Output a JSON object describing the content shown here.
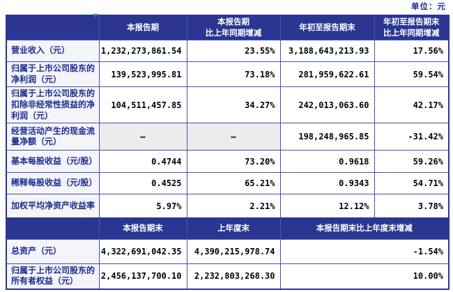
{
  "unit_label": "单位：元",
  "colors": {
    "header_bg": "#2A3692",
    "header_text": "#FFFFFF",
    "border": "#4052A8",
    "outer_border": "#2A3692",
    "label_bg": "#F4F4F9",
    "label_text": "#1B2C8F",
    "value_text": "#000000",
    "dash_cell_bg": "#ECECEC",
    "marker_green": "#2FA043"
  },
  "table1": {
    "headers": [
      "",
      "本报告期",
      "本报告期\n比上年同期增减",
      "年初至报告期末",
      "年初至报告期末\n比上年同期增减"
    ],
    "rows": [
      {
        "label": "营业收入（元）",
        "cells": [
          "1,232,273,861.54",
          "23.55%",
          "3,188,643,213.93",
          "17.56%"
        ]
      },
      {
        "label": "归属于上市公司股东的净利润（元）",
        "cells": [
          "139,523,995.81",
          "73.18%",
          "281,959,622.61",
          "59.54%"
        ]
      },
      {
        "label": "归属于上市公司股东的扣除非经常性损益的净利润（元）",
        "cells": [
          "104,511,457.85",
          "34.27%",
          "242,013,063.60",
          "42.17%"
        ]
      },
      {
        "label": "经营活动产生的现金流量净额（元）",
        "cells": [
          "–",
          "–",
          "198,248,965.85",
          "-31.42%"
        ],
        "shaded": [
          0,
          1
        ]
      },
      {
        "label": "基本每股收益（元/股）",
        "cells": [
          "0.4744",
          "73.20%",
          "0.9618",
          "59.26%"
        ]
      },
      {
        "label": "稀释每股收益（元/股）",
        "cells": [
          "0.4525",
          "65.21%",
          "0.9343",
          "54.71%"
        ]
      },
      {
        "label": "加权平均净资产收益率",
        "cells": [
          "5.97%",
          "2.21%",
          "12.12%",
          "3.78%"
        ]
      }
    ]
  },
  "table2": {
    "headers": [
      "",
      "本报告期末",
      "上年度末",
      "本报告期末比上年度末增减"
    ],
    "rows": [
      {
        "label": "总资产（元）",
        "cells": [
          "4,322,691,042.35",
          "4,390,215,978.74",
          "-1.54%"
        ]
      },
      {
        "label": "归属于上市公司股东的所有者权益（元）",
        "cells": [
          "2,456,137,700.10",
          "2,232,803,268.30",
          "10.00%"
        ]
      }
    ]
  }
}
